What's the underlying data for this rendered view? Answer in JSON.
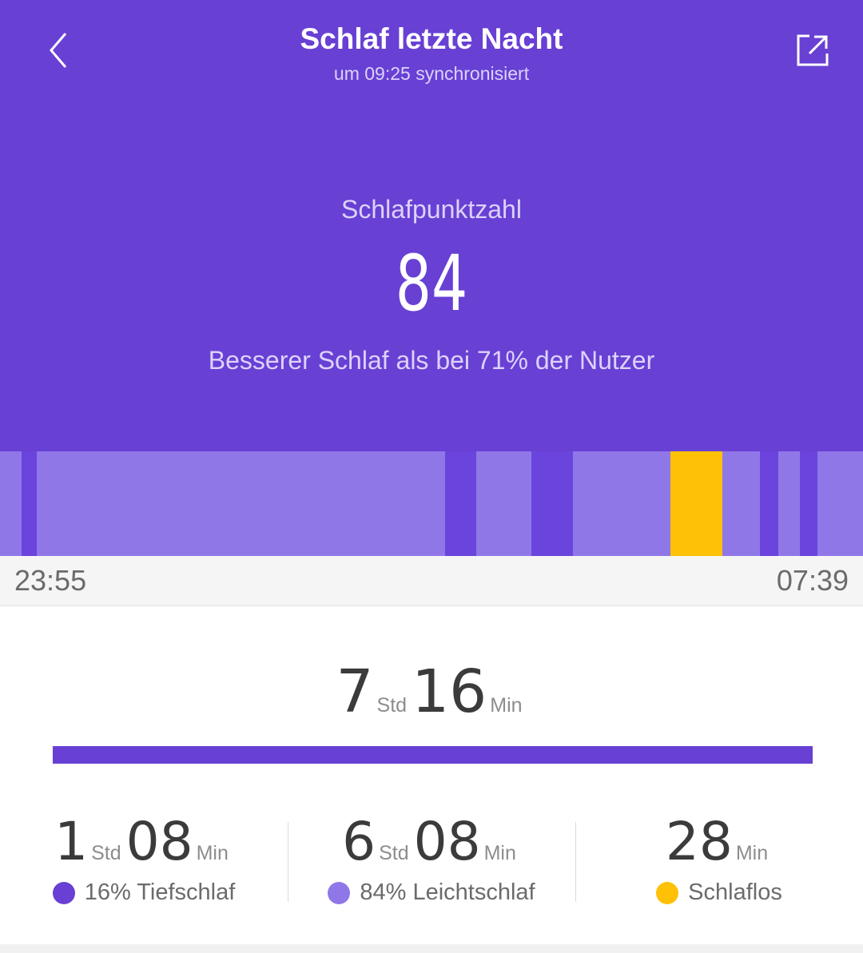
{
  "header": {
    "title": "Schlaf letzte Nacht",
    "subtitle": "um 09:25 synchronisiert",
    "back_icon": "chevron-left-icon",
    "share_icon": "share-external-icon"
  },
  "score": {
    "label": "Schlafpunktzahl",
    "value": "84",
    "comparison": "Besserer Schlaf als bei 71% der Nutzer"
  },
  "colors": {
    "background": "#6840d4",
    "deep": "#6a44dc",
    "light": "#9077e8",
    "awake": "#ffc107"
  },
  "timeline": {
    "start_time": "23:55",
    "end_time": "07:39"
  },
  "total": {
    "hours": "7",
    "hours_unit": "Std",
    "minutes": "16",
    "minutes_unit": "Min"
  },
  "stats": [
    {
      "hours": "1",
      "hours_unit": "Std",
      "minutes": "08",
      "minutes_unit": "Min",
      "label": "16% Tiefschlaf",
      "color": "#6840d4"
    },
    {
      "hours": "6",
      "hours_unit": "Std",
      "minutes": "08",
      "minutes_unit": "Min",
      "label": "84% Leichtschlaf",
      "color": "#9077e8"
    },
    {
      "minutes": "28",
      "minutes_unit": "Min",
      "label": "Schlaflos",
      "color": "#ffc107"
    }
  ]
}
